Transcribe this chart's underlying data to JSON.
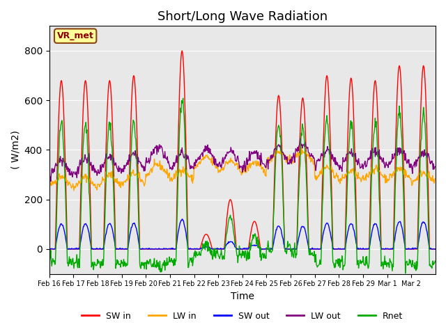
{
  "title": "Short/Long Wave Radiation",
  "xlabel": "Time",
  "ylabel": "( W/m2)",
  "ylim": [
    -100,
    900
  ],
  "annotation_text": "VR_met",
  "line_colors": {
    "SW_in": "#FF0000",
    "LW_in": "#FFA500",
    "SW_out": "#0000FF",
    "LW_out": "#800080",
    "Rnet": "#00AA00"
  },
  "legend_labels": [
    "SW in",
    "LW in",
    "SW out",
    "LW out",
    "Rnet"
  ],
  "x_tick_labels": [
    "Feb 16",
    "Feb 17",
    "Feb 18",
    "Feb 19",
    "Feb 20",
    "Feb 21",
    "Feb 22",
    "Feb 23",
    "Feb 24",
    "Feb 25",
    "Feb 26",
    "Feb 27",
    "Feb 28",
    "Feb 29",
    "Mar 1",
    "Mar 2"
  ],
  "background_color": "#E8E8E8",
  "title_fontsize": 13,
  "axis_fontsize": 10
}
